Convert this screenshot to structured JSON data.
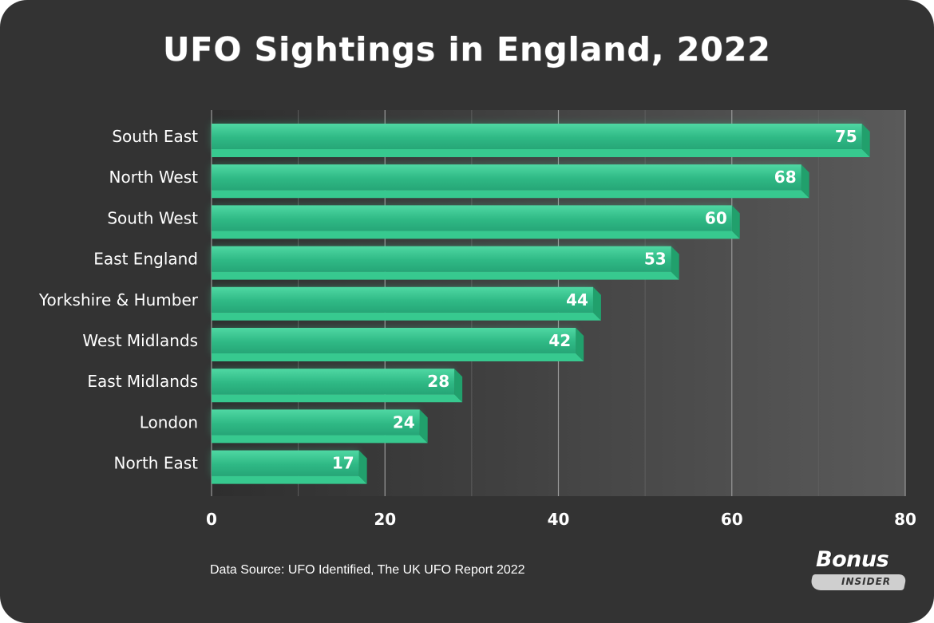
{
  "chart_data": {
    "type": "bar",
    "orientation": "horizontal",
    "title": "UFO Sightings in England, 2022",
    "categories": [
      "South East",
      "North West",
      "South West",
      "East England",
      "Yorkshire & Humber",
      "West Midlands",
      "East Midlands",
      "London",
      "North East"
    ],
    "values": [
      75,
      68,
      60,
      53,
      44,
      42,
      28,
      24,
      17
    ],
    "xlim": [
      0,
      80
    ],
    "xticks": [
      0,
      20,
      40,
      60,
      80
    ],
    "xlabel": "",
    "ylabel": "",
    "grid": true,
    "data_labels": true,
    "colors": {
      "bar": "#3ecf97",
      "bar_dark": "#21a06c",
      "background": "#333333",
      "grid": "#6a6a6a",
      "text": "#ffffff"
    }
  },
  "footer": {
    "source": "Data Source: UFO Identified, The UK UFO Report 2022"
  },
  "logo": {
    "line1": "Bonus",
    "line2": "INSIDER"
  }
}
